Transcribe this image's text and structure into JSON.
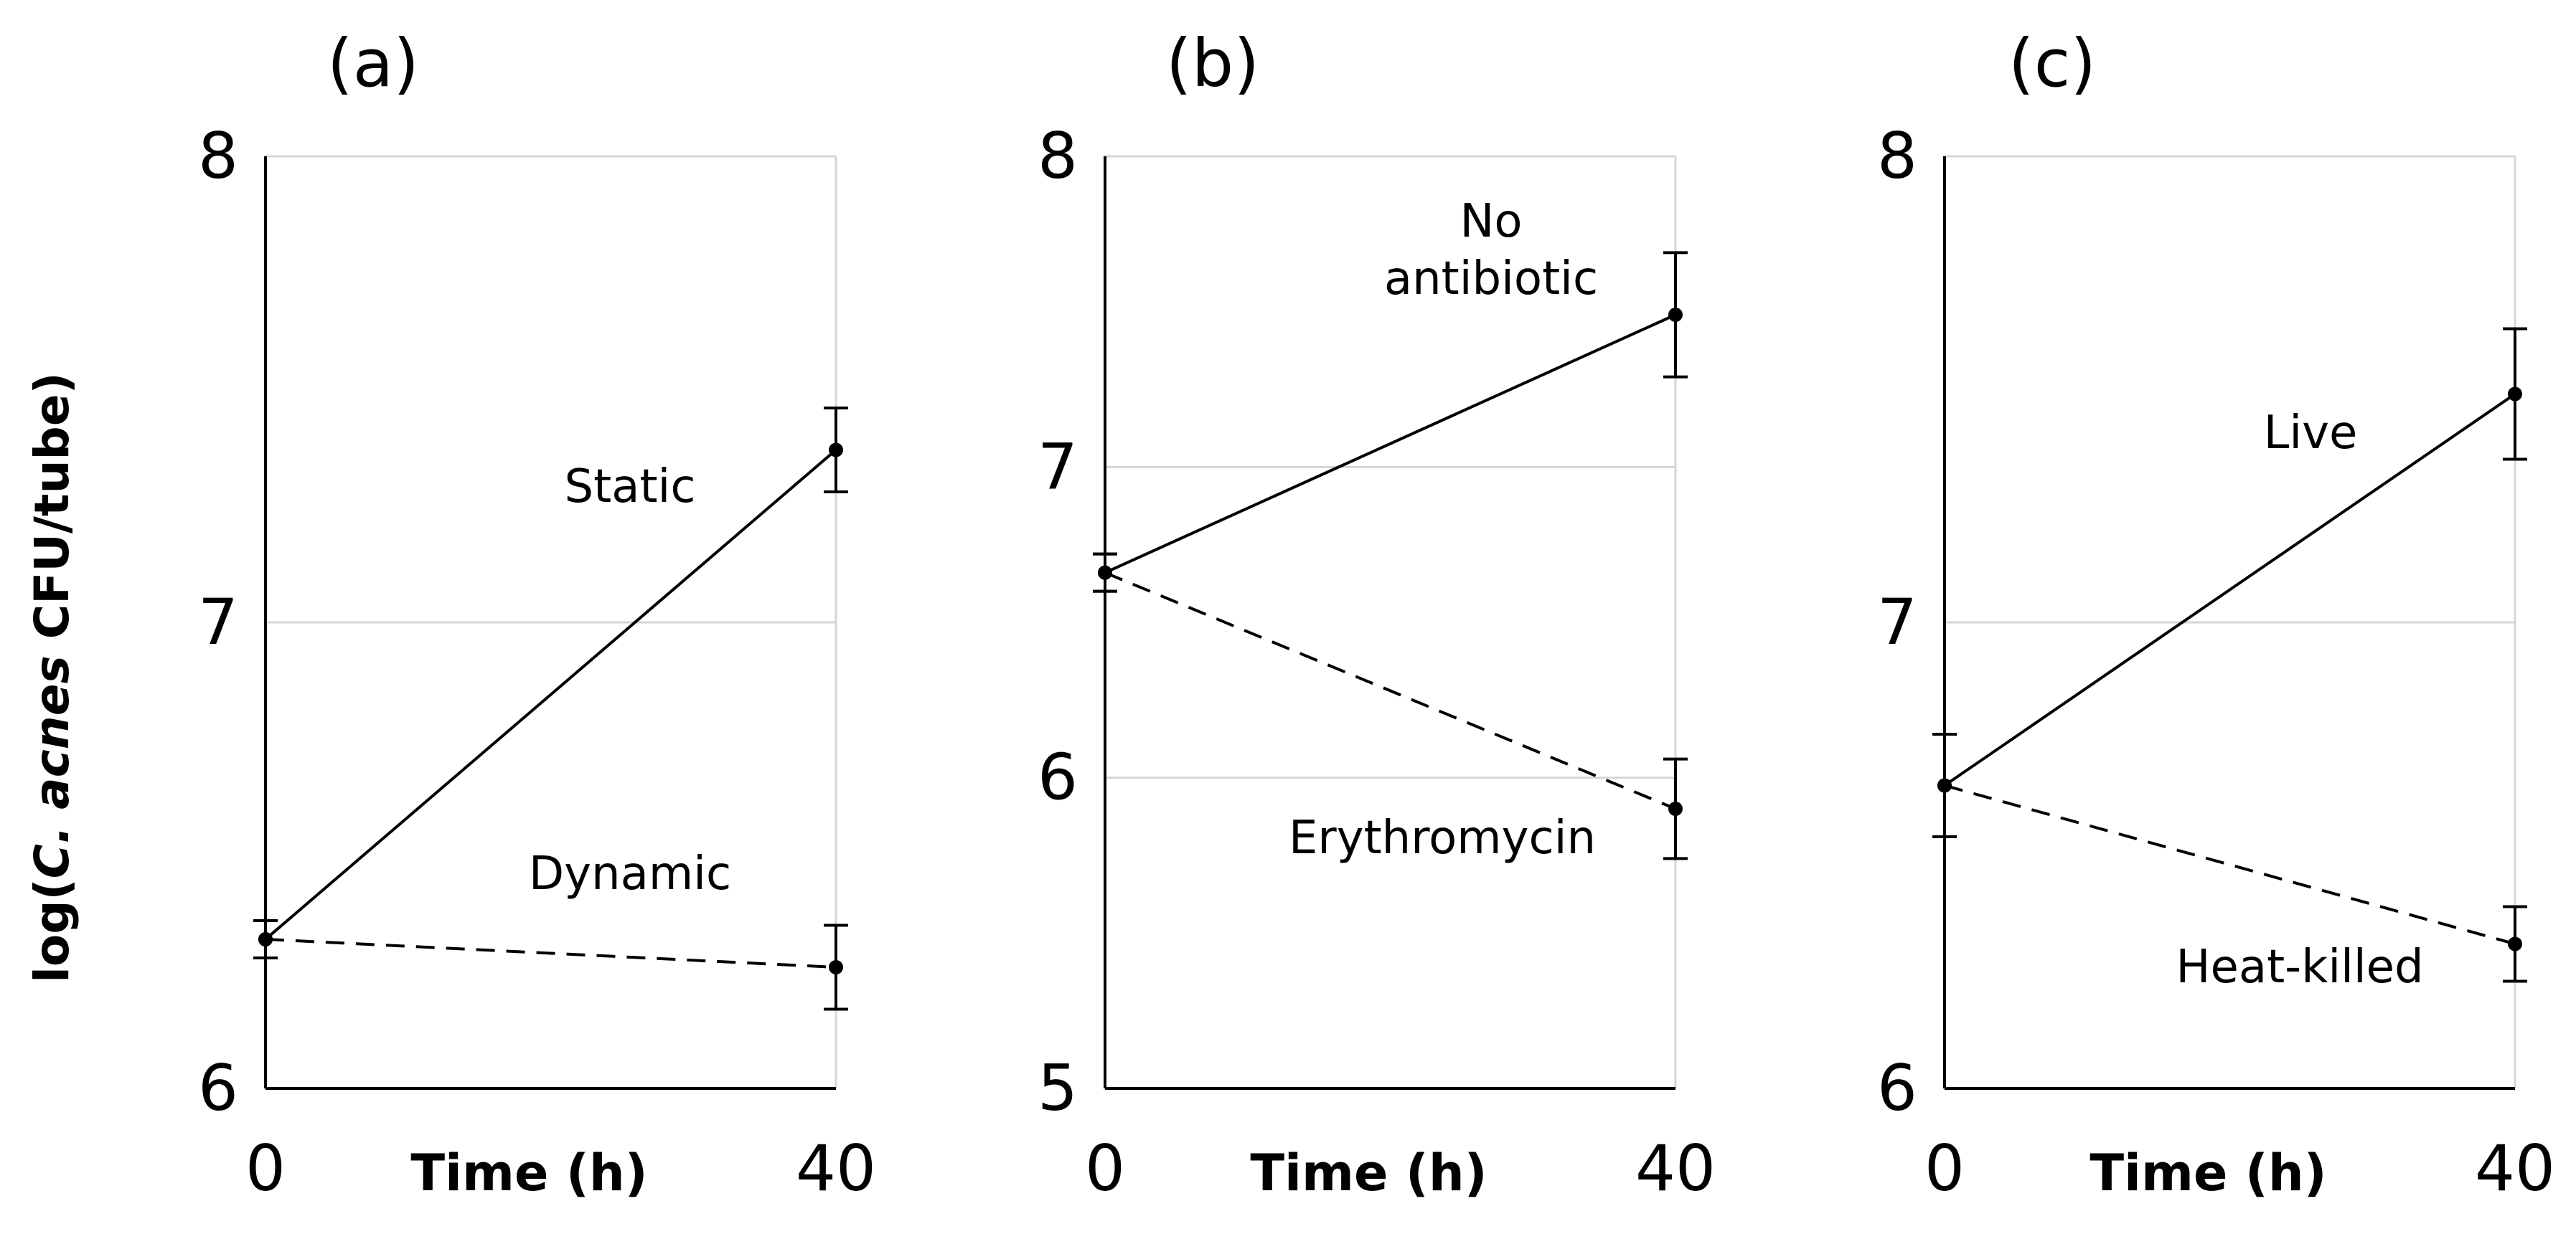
{
  "figure": {
    "ylabel_prefix": "log(",
    "ylabel_italic": "C. acnes",
    "ylabel_suffix": " CFU/tube)"
  },
  "chart_data": [
    {
      "type": "line",
      "panel_label": "(a)",
      "xlabel": "Time (h)",
      "x": [
        0,
        40
      ],
      "ylim": [
        6,
        8
      ],
      "yticks": [
        6,
        7,
        8
      ],
      "grid": true,
      "series": [
        {
          "name": "Static",
          "style": "solid",
          "values": [
            6.32,
            7.37
          ],
          "errors": [
            0.04,
            0.09
          ]
        },
        {
          "name": "Dynamic",
          "style": "dashed",
          "values": [
            6.32,
            6.26
          ],
          "errors": [
            0.04,
            0.09
          ]
        }
      ]
    },
    {
      "type": "line",
      "panel_label": "(b)",
      "xlabel": "Time (h)",
      "x": [
        0,
        40
      ],
      "ylim": [
        5,
        8
      ],
      "yticks": [
        5,
        6,
        7,
        8
      ],
      "grid": true,
      "series": [
        {
          "name": "No antibiotic",
          "style": "solid",
          "values": [
            6.66,
            7.49
          ],
          "errors": [
            0.06,
            0.2
          ]
        },
        {
          "name": "Erythromycin",
          "style": "dashed",
          "values": [
            6.66,
            5.9
          ],
          "errors": [
            0.06,
            0.16
          ]
        }
      ]
    },
    {
      "type": "line",
      "panel_label": "(c)",
      "xlabel": "Time (h)",
      "x": [
        0,
        40
      ],
      "ylim": [
        6,
        8
      ],
      "yticks": [
        6,
        7,
        8
      ],
      "grid": true,
      "series": [
        {
          "name": "Live",
          "style": "solid",
          "values": [
            6.65,
            7.49
          ],
          "errors": [
            0.11,
            0.14
          ]
        },
        {
          "name": "Heat-killed",
          "style": "dashed",
          "values": [
            6.65,
            6.31
          ],
          "errors": [
            0.11,
            0.08
          ]
        }
      ]
    }
  ]
}
